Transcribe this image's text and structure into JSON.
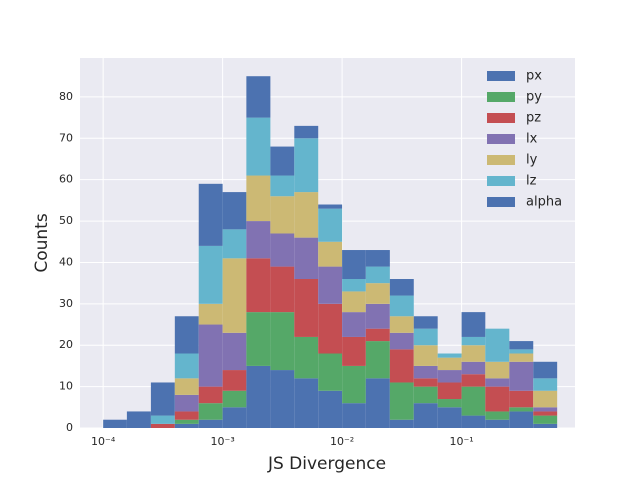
{
  "chart_data": {
    "type": "histogram",
    "stacked": true,
    "x_label": "JS Divergence",
    "y_label": "Counts",
    "log_x": true,
    "grid": true,
    "legend": "upper right",
    "bins": [
      0.0001,
      0.000158,
      0.000251,
      0.000398,
      0.000631,
      0.001,
      0.00158,
      0.00251,
      0.00398,
      0.00631,
      0.01,
      0.0158,
      0.0251,
      0.0398,
      0.0631,
      0.1,
      0.158,
      0.251,
      0.398,
      0.631
    ],
    "series": [
      {
        "name": "px",
        "color": "#4c72b0",
        "values": [
          0,
          0,
          0,
          1,
          2,
          5,
          15,
          14,
          12,
          9,
          6,
          12,
          2,
          6,
          5,
          3,
          2,
          4,
          1
        ]
      },
      {
        "name": "py",
        "color": "#55a868",
        "values": [
          0,
          0,
          0,
          1,
          4,
          4,
          13,
          14,
          10,
          9,
          9,
          9,
          9,
          4,
          2,
          7,
          2,
          1,
          2
        ]
      },
      {
        "name": "pz",
        "color": "#c44e52",
        "values": [
          0,
          0,
          1,
          2,
          4,
          5,
          13,
          11,
          14,
          12,
          7,
          3,
          8,
          2,
          4,
          3,
          6,
          4,
          1
        ]
      },
      {
        "name": "lx",
        "color": "#8172b2",
        "values": [
          0,
          0,
          0,
          4,
          15,
          9,
          9,
          8,
          10,
          9,
          6,
          6,
          4,
          3,
          3,
          3,
          2,
          7,
          1
        ]
      },
      {
        "name": "ly",
        "color": "#ccb974",
        "values": [
          0,
          0,
          0,
          4,
          5,
          18,
          11,
          9,
          11,
          6,
          5,
          5,
          4,
          5,
          3,
          4,
          4,
          2,
          4
        ]
      },
      {
        "name": "lz",
        "color": "#64b5cd",
        "values": [
          0,
          0,
          2,
          6,
          14,
          7,
          14,
          5,
          13,
          8,
          3,
          4,
          5,
          4,
          1,
          2,
          8,
          1,
          3
        ]
      },
      {
        "name": "alpha",
        "color": "#4c72b0",
        "values": [
          2,
          4,
          8,
          9,
          15,
          9,
          10,
          7,
          3,
          1,
          7,
          4,
          4,
          3,
          0,
          6,
          0,
          2,
          4
        ]
      }
    ],
    "xlim": [
      6.4e-05,
      0.89
    ],
    "xticks": [
      {
        "value": 0.0001,
        "label": "10⁻⁴"
      },
      {
        "value": 0.001,
        "label": "10⁻³"
      },
      {
        "value": 0.01,
        "label": "10⁻²"
      },
      {
        "value": 0.1,
        "label": "10⁻¹"
      }
    ],
    "ylim": [
      0,
      89.4
    ],
    "yticks": [
      0,
      10,
      20,
      30,
      40,
      50,
      60,
      70,
      80
    ]
  }
}
